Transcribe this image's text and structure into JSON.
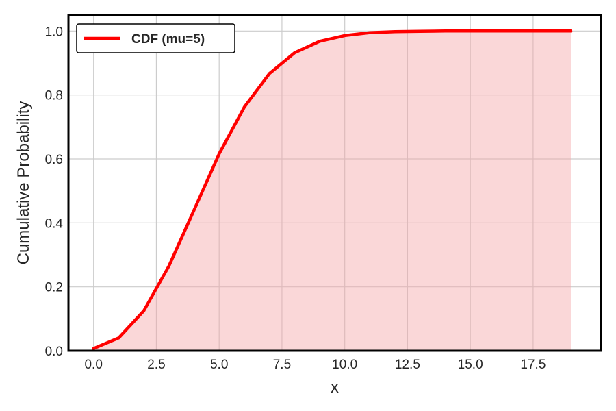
{
  "chart_data": {
    "type": "area",
    "title": "",
    "xlabel": "x",
    "ylabel": "Cumulative Probability",
    "xlim": [
      -1,
      20.2
    ],
    "ylim": [
      0,
      1.05
    ],
    "xticks": [
      0,
      2.5,
      5,
      7.5,
      10,
      12.5,
      15,
      17.5
    ],
    "xtick_labels": [
      "0.0",
      "2.5",
      "5.0",
      "7.5",
      "10.0",
      "12.5",
      "15.0",
      "17.5"
    ],
    "yticks": [
      0,
      0.2,
      0.4,
      0.6,
      0.8,
      1.0
    ],
    "ytick_labels": [
      "0.0",
      "0.2",
      "0.4",
      "0.6",
      "0.8",
      "1.0"
    ],
    "grid": true,
    "legend_position": "top-left",
    "series": [
      {
        "name": "CDF (mu=5)",
        "color": "#ff0000",
        "fill_color": "#f4a6a8",
        "x": [
          0,
          1,
          2,
          3,
          4,
          5,
          6,
          7,
          8,
          9,
          10,
          11,
          12,
          13,
          14,
          15,
          16,
          17,
          18,
          19
        ],
        "y": [
          0.007,
          0.04,
          0.125,
          0.265,
          0.44,
          0.616,
          0.762,
          0.867,
          0.932,
          0.968,
          0.986,
          0.995,
          0.998,
          0.999,
          1.0,
          1.0,
          1.0,
          1.0,
          1.0,
          1.0
        ]
      }
    ]
  }
}
